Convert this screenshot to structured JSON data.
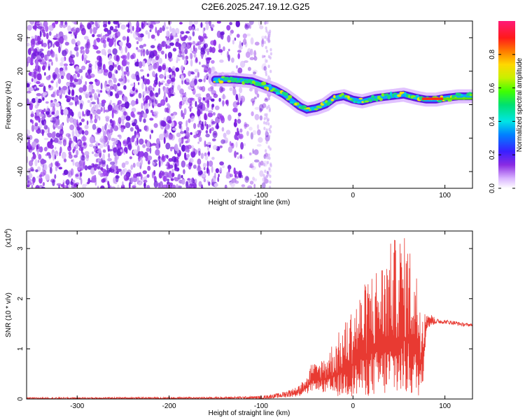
{
  "title": "C2E6.2025.247.19.12.G25",
  "colors": {
    "trace": "#e83a32",
    "axis": "#000000",
    "background": "#ffffff"
  },
  "chart_data": [
    {
      "type": "heatmap",
      "name": "spectrogram",
      "xlabel": "Height of straight line (km)",
      "ylabel": "Frequency (Hz)",
      "xlim": [
        -355,
        130
      ],
      "ylim": [
        -50,
        50
      ],
      "xticks": [
        -300,
        -200,
        -100,
        0,
        100
      ],
      "xtick_labels": [
        "-300",
        "-200",
        "-100",
        "0",
        "100"
      ],
      "yticks": [
        -40,
        -20,
        0,
        20,
        40
      ],
      "ytick_labels": [
        "-40",
        "-20",
        "0",
        "20",
        "40"
      ],
      "ridge": {
        "x": [
          -150,
          -130,
          -110,
          -95,
          -85,
          -75,
          -65,
          -58,
          -50,
          -40,
          -30,
          -20,
          -10,
          0,
          10,
          25,
          40,
          55,
          70,
          80,
          90,
          100,
          115,
          130
        ],
        "freq": [
          15,
          15,
          14,
          11,
          9,
          6,
          2,
          -1,
          -3,
          -2,
          0,
          4,
          5,
          3,
          2,
          4,
          5,
          6,
          4,
          3,
          3,
          4,
          5,
          5
        ]
      },
      "colorbar": {
        "label": "Normalized spectral amplitude",
        "range": [
          0,
          1
        ],
        "ticks": [
          0.0,
          0.2,
          0.4,
          0.6,
          0.8
        ],
        "tick_labels": [
          "0.0",
          "0.2",
          "0.4",
          "0.6",
          "0.8"
        ]
      }
    },
    {
      "type": "line",
      "name": "snr",
      "xlabel": "Height of straight line (km)",
      "ylabel": "SNR (10 * v/v)",
      "y_multiplier_label": "(x10",
      "y_multiplier_exp": "4",
      "y_multiplier_close": ")",
      "xlim": [
        -355,
        130
      ],
      "ylim": [
        0,
        3.35
      ],
      "xticks": [
        -300,
        -200,
        -100,
        0,
        100
      ],
      "xtick_labels": [
        "-300",
        "-200",
        "-100",
        "0",
        "100"
      ],
      "yticks": [
        0,
        1,
        2,
        3
      ],
      "ytick_labels": [
        "0",
        "1",
        "2",
        "3"
      ],
      "series": [
        {
          "name": "SNR",
          "envelope_x": [
            -355,
            -150,
            -100,
            -80,
            -60,
            -50,
            -45,
            -40,
            -30,
            -20,
            -10,
            0,
            10,
            20,
            30,
            40,
            50,
            60,
            70,
            75,
            80,
            90,
            100,
            110,
            120,
            130
          ],
          "envelope_max": [
            0.03,
            0.04,
            0.06,
            0.12,
            0.25,
            0.45,
            0.75,
            0.7,
            0.9,
            1.2,
            1.5,
            1.9,
            2.2,
            2.6,
            2.7,
            3.1,
            3.3,
            3.2,
            2.5,
            2.0,
            1.8,
            1.6,
            1.58,
            1.56,
            1.52,
            1.5
          ],
          "envelope_min": [
            0.0,
            0.0,
            0.0,
            0.02,
            0.05,
            0.1,
            0.15,
            0.2,
            0.1,
            0.05,
            0.05,
            0.05,
            0.05,
            0.05,
            0.05,
            0.05,
            0.05,
            0.05,
            0.05,
            0.05,
            1.4,
            1.5,
            1.5,
            1.48,
            1.45,
            1.45
          ]
        }
      ]
    }
  ]
}
